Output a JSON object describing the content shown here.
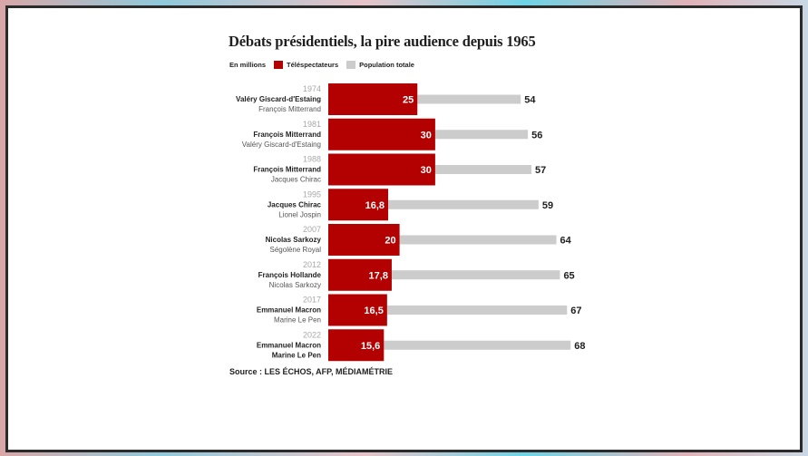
{
  "chart_data": {
    "type": "bar",
    "title": "Débats présidentiels, la pire audience depuis 1965",
    "unit_label": "En millions",
    "legend": [
      {
        "name": "Téléspectateurs",
        "color": "#b30000"
      },
      {
        "name": "Population totale",
        "color": "#cccccc"
      }
    ],
    "legend_position": "top-left",
    "categories": [
      "1974",
      "1981",
      "1988",
      "1995",
      "2007",
      "2012",
      "2017",
      "2022"
    ],
    "rows": [
      {
        "year": "1974",
        "winner": "Valéry Giscard-d'Estaing",
        "loser": "François Mitterrand",
        "viewers": 25,
        "viewers_label": "25",
        "population": 54,
        "population_label": "54"
      },
      {
        "year": "1981",
        "winner": "François Mitterrand",
        "loser": "Valéry Giscard-d'Estaing",
        "viewers": 30,
        "viewers_label": "30",
        "population": 56,
        "population_label": "56"
      },
      {
        "year": "1988",
        "winner": "François Mitterrand",
        "loser": "Jacques Chirac",
        "viewers": 30,
        "viewers_label": "30",
        "population": 57,
        "population_label": "57"
      },
      {
        "year": "1995",
        "winner": "Jacques Chirac",
        "loser": "Lionel Jospin",
        "viewers": 16.8,
        "viewers_label": "16,8",
        "population": 59,
        "population_label": "59"
      },
      {
        "year": "2007",
        "winner": "Nicolas Sarkozy",
        "loser": "Ségolène Royal",
        "viewers": 20,
        "viewers_label": "20",
        "population": 64,
        "population_label": "64"
      },
      {
        "year": "2012",
        "winner": "François Hollande",
        "loser": "Nicolas Sarkozy",
        "viewers": 17.8,
        "viewers_label": "17,8",
        "population": 65,
        "population_label": "65"
      },
      {
        "year": "2017",
        "winner": "Emmanuel Macron",
        "loser": "Marine Le Pen",
        "viewers": 16.5,
        "viewers_label": "16,5",
        "population": 67,
        "population_label": "67"
      },
      {
        "year": "2022",
        "winner": "Emmanuel Macron",
        "loser": "Marine Le Pen",
        "viewers": 15.6,
        "viewers_label": "15,6",
        "population": 68,
        "population_label": "68",
        "loser_bold": true
      }
    ],
    "series": [
      {
        "name": "Téléspectateurs",
        "values": [
          25,
          30,
          30,
          16.8,
          20,
          17.8,
          16.5,
          15.6
        ]
      },
      {
        "name": "Population totale",
        "values": [
          54,
          56,
          57,
          59,
          64,
          65,
          67,
          68
        ]
      }
    ],
    "xlim": [
      0,
      70
    ],
    "grid": false,
    "source": "Source : LES ÉCHOS, AFP, MÉDIAMÉTRIE"
  }
}
